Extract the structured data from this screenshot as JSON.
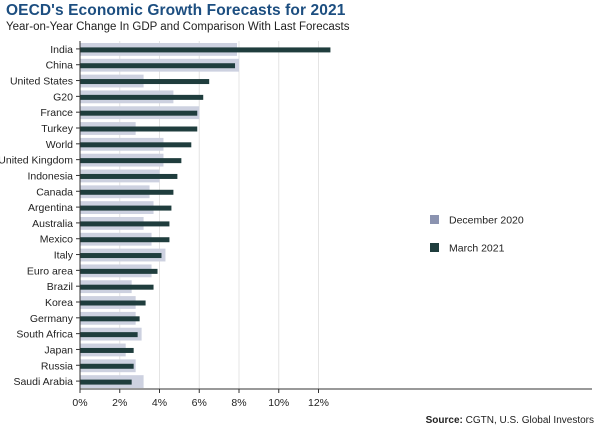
{
  "header": {
    "title": "OECD's Economic Growth Forecasts for 2021",
    "subtitle": "Year-on-Year Change In GDP and Comparison With Last Forecasts"
  },
  "footer": {
    "source_label": "Source:",
    "source_text": "CGTN, U.S. Global Investors"
  },
  "colors": {
    "december_2020": "#cdd1e0",
    "march_2021": "#1f3d3d",
    "december_legend_swatch": "#8b93b0",
    "axis": "#333333",
    "title": "#1c4e80"
  },
  "chart_data": {
    "type": "bar",
    "orientation": "horizontal",
    "title": "OECD's Economic Growth Forecasts for 2021",
    "subtitle": "Year-on-Year Change In GDP and Comparison With Last Forecasts",
    "categories": [
      "India",
      "China",
      "United States",
      "G20",
      "France",
      "Turkey",
      "World",
      "United Kingdom",
      "Indonesia",
      "Canada",
      "Argentina",
      "Australia",
      "Mexico",
      "Italy",
      "Euro area",
      "Brazil",
      "Korea",
      "Germany",
      "South Africa",
      "Japan",
      "Russia",
      "Saudi Arabia"
    ],
    "series": [
      {
        "name": "December 2020",
        "values": [
          7.9,
          8.0,
          3.2,
          4.7,
          6.0,
          2.8,
          4.2,
          4.2,
          4.0,
          3.5,
          3.7,
          3.2,
          3.6,
          4.3,
          3.6,
          2.6,
          2.8,
          2.8,
          3.1,
          2.3,
          2.8,
          3.2
        ]
      },
      {
        "name": "March 2021",
        "values": [
          12.6,
          7.8,
          6.5,
          6.2,
          5.9,
          5.9,
          5.6,
          5.1,
          4.9,
          4.7,
          4.6,
          4.5,
          4.5,
          4.1,
          3.9,
          3.7,
          3.3,
          3.0,
          2.9,
          2.7,
          2.7,
          2.6
        ]
      }
    ],
    "x_ticks": [
      "0%",
      "2%",
      "4%",
      "6%",
      "8%",
      "10%",
      "12%"
    ],
    "xlim": [
      0,
      13
    ],
    "xlabel": "",
    "ylabel": "",
    "grid": true,
    "legend_position": "right-middle"
  }
}
